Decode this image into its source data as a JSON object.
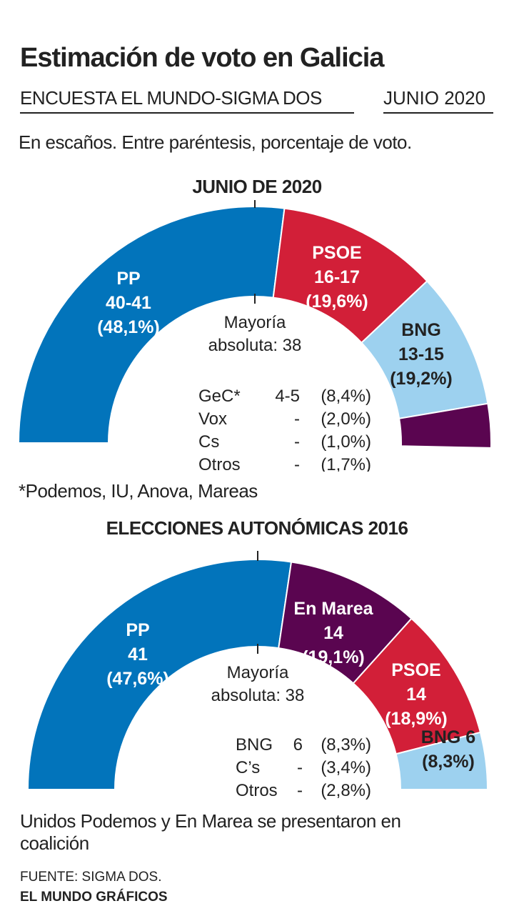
{
  "header": {
    "title": "Estimación de voto en Galicia",
    "subtitle": "ENCUESTA EL MUNDO-SIGMA DOS",
    "date": "JUNIO 2020",
    "description": "En escaños. Entre paréntesis, porcentaje de voto."
  },
  "chart_data": [
    {
      "type": "pie",
      "subtype": "hemicycle",
      "title": "JUNIO DE 2020",
      "total_seats": 75,
      "majority_label": [
        "Mayoría",
        "absoluta: 38"
      ],
      "slices": [
        {
          "name": "PP",
          "seats_label": "40-41",
          "seats": 40.5,
          "pct_label": "(48,1%)",
          "color": "#0274bb",
          "text_color": "#ffffff"
        },
        {
          "name": "PSOE",
          "seats_label": "16-17",
          "seats": 16.5,
          "pct_label": "(19,6%)",
          "color": "#d21f38",
          "text_color": "#ffffff"
        },
        {
          "name": "BNG",
          "seats_label": "13-15",
          "seats": 14,
          "pct_label": "(19,2%)",
          "color": "#9dd1ef",
          "text_color": "#222222"
        },
        {
          "name": "GeC*",
          "seats_label": "4-5",
          "seats": 4.5,
          "pct_label": "(8,4%)",
          "color": "#5a0550",
          "text_color": "#ffffff"
        }
      ],
      "legend": [
        {
          "name": "GeC*",
          "seats": "4-5",
          "pct": "(8,4%)"
        },
        {
          "name": "Vox",
          "seats": "-",
          "pct": "(2,0%)"
        },
        {
          "name": "Cs",
          "seats": "-",
          "pct": "(1,0%)"
        },
        {
          "name": "Otros",
          "seats": "-",
          "pct": "(1,7%)"
        }
      ],
      "footnote": "*Podemos, IU, Anova, Mareas"
    },
    {
      "type": "pie",
      "subtype": "hemicycle",
      "title": "ELECCIONES AUTONÓMICAS 2016",
      "total_seats": 75,
      "majority_label": [
        "Mayoría",
        "absoluta: 38"
      ],
      "slices": [
        {
          "name": "PP",
          "seats_label": "41",
          "seats": 41,
          "pct_label": "(47,6%)",
          "color": "#0274bb",
          "text_color": "#ffffff"
        },
        {
          "name": "En Marea",
          "seats_label": "14",
          "seats": 14,
          "pct_label": "(19,1%)",
          "color": "#5a0550",
          "text_color": "#ffffff"
        },
        {
          "name": "PSOE",
          "seats_label": "14",
          "seats": 14,
          "pct_label": "(18,9%)",
          "color": "#d21f38",
          "text_color": "#ffffff"
        },
        {
          "name": "BNG",
          "seats_label": "6",
          "seats": 6,
          "pct_label": "(8,3%)",
          "color": "#9dd1ef",
          "text_color": "#222222"
        }
      ],
      "legend": [
        {
          "name": "BNG",
          "seats": "6",
          "pct": "(8,3%)"
        },
        {
          "name": "C’s",
          "seats": "-",
          "pct": "(3,4%)"
        },
        {
          "name": "Otros",
          "seats": "-",
          "pct": "(2,8%)"
        }
      ],
      "footnote": "Unidos Podemos y En Marea se presentaron en coalición"
    }
  ],
  "footer": {
    "source": "FUENTE: SIGMA DOS.",
    "brand": "EL MUNDO GRÁFICOS"
  }
}
